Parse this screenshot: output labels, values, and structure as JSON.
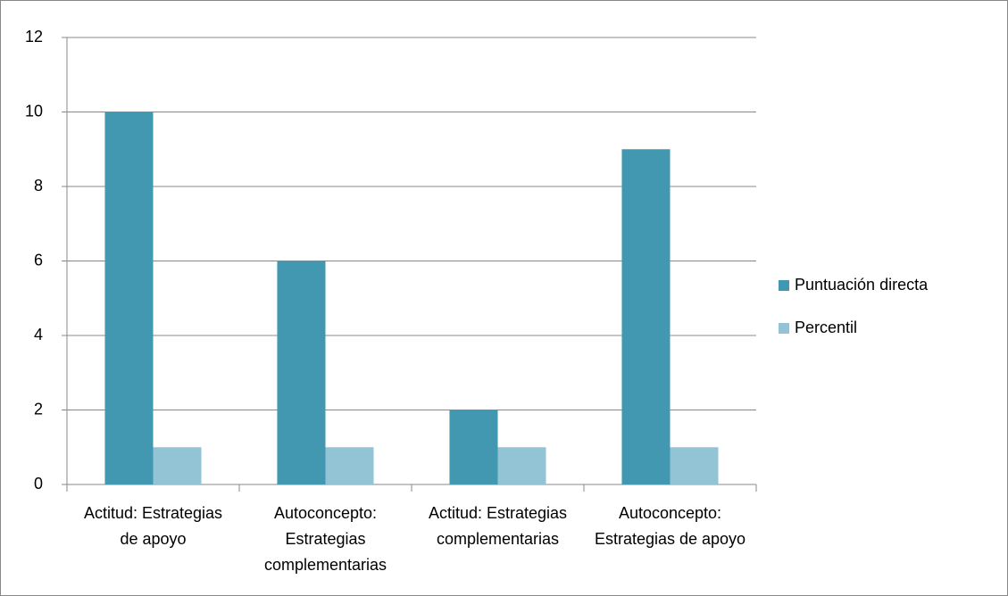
{
  "chart_data": {
    "type": "bar",
    "categories": [
      "Actitud: Estrategias de apoyo",
      "Autoconcepto: Estrategias complementarias",
      "Actitud: Estrategias complementarias",
      "Autoconcepto: Estrategias de apoyo"
    ],
    "series": [
      {
        "name": "Puntuación directa",
        "color": "#4298b1",
        "values": [
          10,
          6,
          2,
          9
        ]
      },
      {
        "name": "Percentil",
        "color": "#93c4d6",
        "values": [
          1,
          1,
          1,
          1
        ]
      }
    ],
    "ylim": [
      0,
      12
    ],
    "yticks": [
      0,
      2,
      4,
      6,
      8,
      10,
      12
    ],
    "grid": true,
    "legend": "right"
  }
}
